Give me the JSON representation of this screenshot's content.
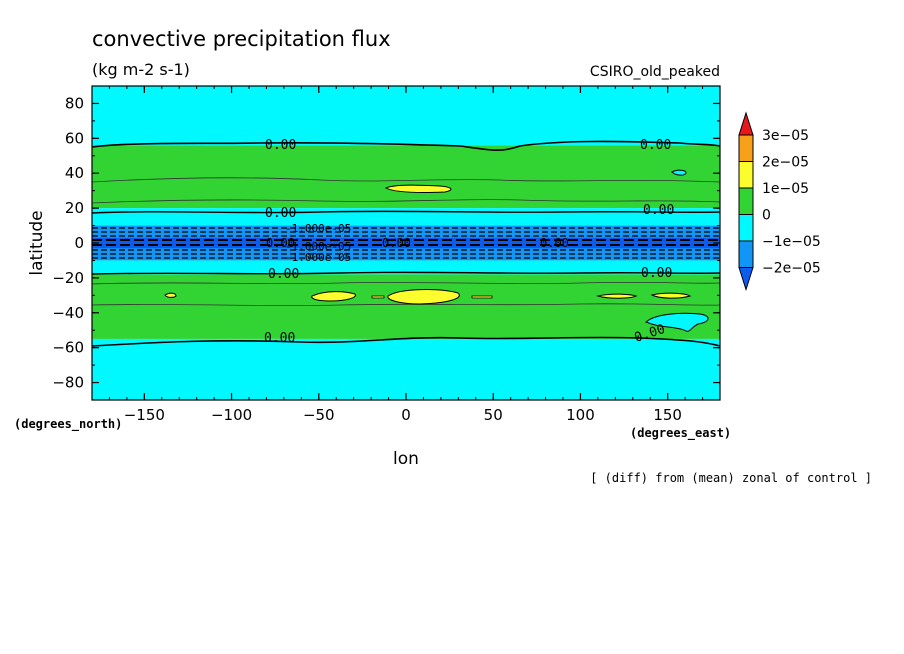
{
  "chart_data": {
    "type": "heatmap",
    "title": "convective precipitation flux",
    "units": "(kg m-2 s-1)",
    "model": "CSIRO_old_peaked",
    "xlabel": "lon",
    "ylabel": "latitude",
    "x_units": "(degrees_east)",
    "y_units": "(degrees_north)",
    "footnote": "[ (diff) from (mean) zonal of control ]",
    "xlim": [
      -180,
      180
    ],
    "ylim": [
      -90,
      90
    ],
    "xticks": [
      -150,
      -100,
      -50,
      0,
      50,
      100,
      150
    ],
    "yticks": [
      -80,
      -60,
      -40,
      -20,
      0,
      20,
      40,
      60,
      80
    ],
    "contour_labels": [
      "0.00",
      "0.00",
      "0.00",
      "0.00",
      "0.00",
      "0.00",
      "0.00",
      "0.00",
      "0.00",
      "0.00",
      "-1.000e-05",
      "-1.000e-05",
      "-1.000e-05"
    ],
    "colorbar": {
      "levels": [
        "3e-05",
        "2e-05",
        "1e-05",
        "0",
        "-1e-05",
        "-2e-05"
      ],
      "colors": [
        "#e8171b",
        "#f7a11a",
        "#fdfd2d",
        "#32d433",
        "#00f8ff",
        "#1296f5",
        "#0c5cf0"
      ]
    },
    "bands": [
      {
        "from": 56,
        "to": 90,
        "value_class": "-1e-05..0",
        "color": "#00f8ff"
      },
      {
        "from": 20,
        "to": 56,
        "value_class": "0..1e-05",
        "color": "#32d433"
      },
      {
        "from": 10,
        "to": 20,
        "value_class": "-1e-05..0",
        "color": "#00f8ff"
      },
      {
        "from": -10,
        "to": 10,
        "value_class": "-2e-05..-1e-05",
        "color": "#1296f5"
      },
      {
        "from": -3,
        "to": 3,
        "value_class": "<-2e-05",
        "color": "#0c5cf0"
      },
      {
        "from": -18,
        "to": -10,
        "value_class": "-1e-05..0",
        "color": "#00f8ff"
      },
      {
        "from": -55,
        "to": -18,
        "value_class": "0..1e-05",
        "color": "#32d433"
      },
      {
        "from": -90,
        "to": -55,
        "value_class": "-1e-05..0",
        "color": "#00f8ff"
      }
    ]
  }
}
